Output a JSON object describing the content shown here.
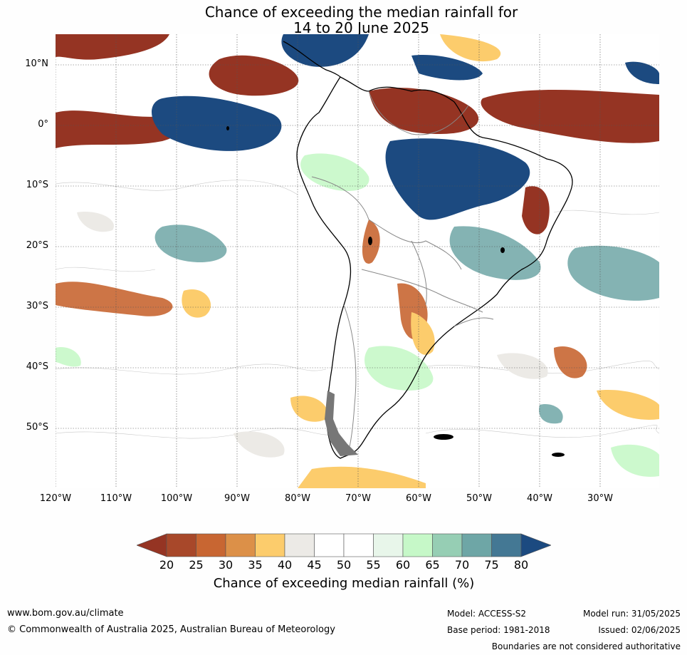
{
  "title": {
    "line1": "Chance of exceeding the median rainfall for",
    "line2": "14 to 20 June 2025"
  },
  "map": {
    "lat_labels": [
      "10°N",
      "0°",
      "10°S",
      "20°S",
      "30°S",
      "40°S",
      "50°S"
    ],
    "lon_labels": [
      "120°W",
      "110°W",
      "100°W",
      "90°W",
      "80°W",
      "70°W",
      "60°W",
      "50°W",
      "40°W",
      "30°W"
    ]
  },
  "colorbar": {
    "ticks": [
      "20",
      "25",
      "30",
      "35",
      "40",
      "45",
      "50",
      "55",
      "60",
      "65",
      "70",
      "75",
      "80"
    ],
    "colors": [
      "#953423",
      "#a8482a",
      "#c86632",
      "#dc9048",
      "#fccc6c",
      "#eceae6",
      "#ffffff",
      "#ffffff",
      "#e8f6ea",
      "#c6f8c8",
      "#96ceb4",
      "#6ea6a6",
      "#447894",
      "#1c4a80"
    ],
    "label": "Chance of exceeding median rainfall (%)"
  },
  "footer": {
    "website": "www.bom.gov.au/climate",
    "copyright": "© Commonwealth of Australia 2025, Australian Bureau of Meteorology",
    "model": "Model: ACCESS-S2",
    "base_period": "Base period: 1981-2018",
    "model_run": "Model run: 31/05/2025",
    "issued": "Issued: 02/06/2025",
    "disclaimer": "Boundaries are not considered authoritative"
  }
}
